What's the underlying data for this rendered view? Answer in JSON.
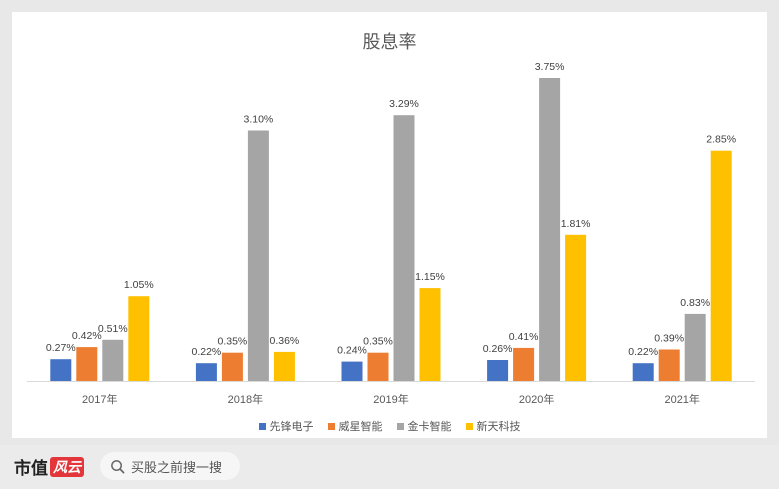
{
  "chart_data": {
    "type": "bar",
    "title": "股息率",
    "categories": [
      "2017年",
      "2018年",
      "2019年",
      "2020年",
      "2021年"
    ],
    "series": [
      {
        "name": "先锋电子",
        "color": "#4472c4",
        "values": [
          0.27,
          0.22,
          0.24,
          0.26,
          0.22
        ],
        "labels": [
          "0.27%",
          "0.22%",
          "0.24%",
          "0.26%",
          "0.22%"
        ]
      },
      {
        "name": "威星智能",
        "color": "#ed7d31",
        "values": [
          0.42,
          0.35,
          0.35,
          0.41,
          0.39
        ],
        "labels": [
          "0.42%",
          "0.35%",
          "0.35%",
          "0.41%",
          "0.39%"
        ]
      },
      {
        "name": "金卡智能",
        "color": "#a5a5a5",
        "values": [
          0.51,
          3.1,
          3.29,
          3.75,
          0.83
        ],
        "labels": [
          "0.51%",
          "3.10%",
          "3.29%",
          "3.75%",
          "0.83%"
        ]
      },
      {
        "name": "新天科技",
        "color": "#ffc000",
        "values": [
          1.05,
          0.36,
          1.15,
          1.81,
          2.85
        ],
        "labels": [
          "1.05%",
          "0.36%",
          "1.15%",
          "1.81%",
          "2.85%"
        ]
      }
    ],
    "ylim": [
      0,
      3.75
    ],
    "grid": false,
    "legend_position": "bottom"
  },
  "footer": {
    "brand": "市值",
    "brand_badge": "风云",
    "search_placeholder": "买股之前搜一搜",
    "search_icon": "search-icon"
  }
}
